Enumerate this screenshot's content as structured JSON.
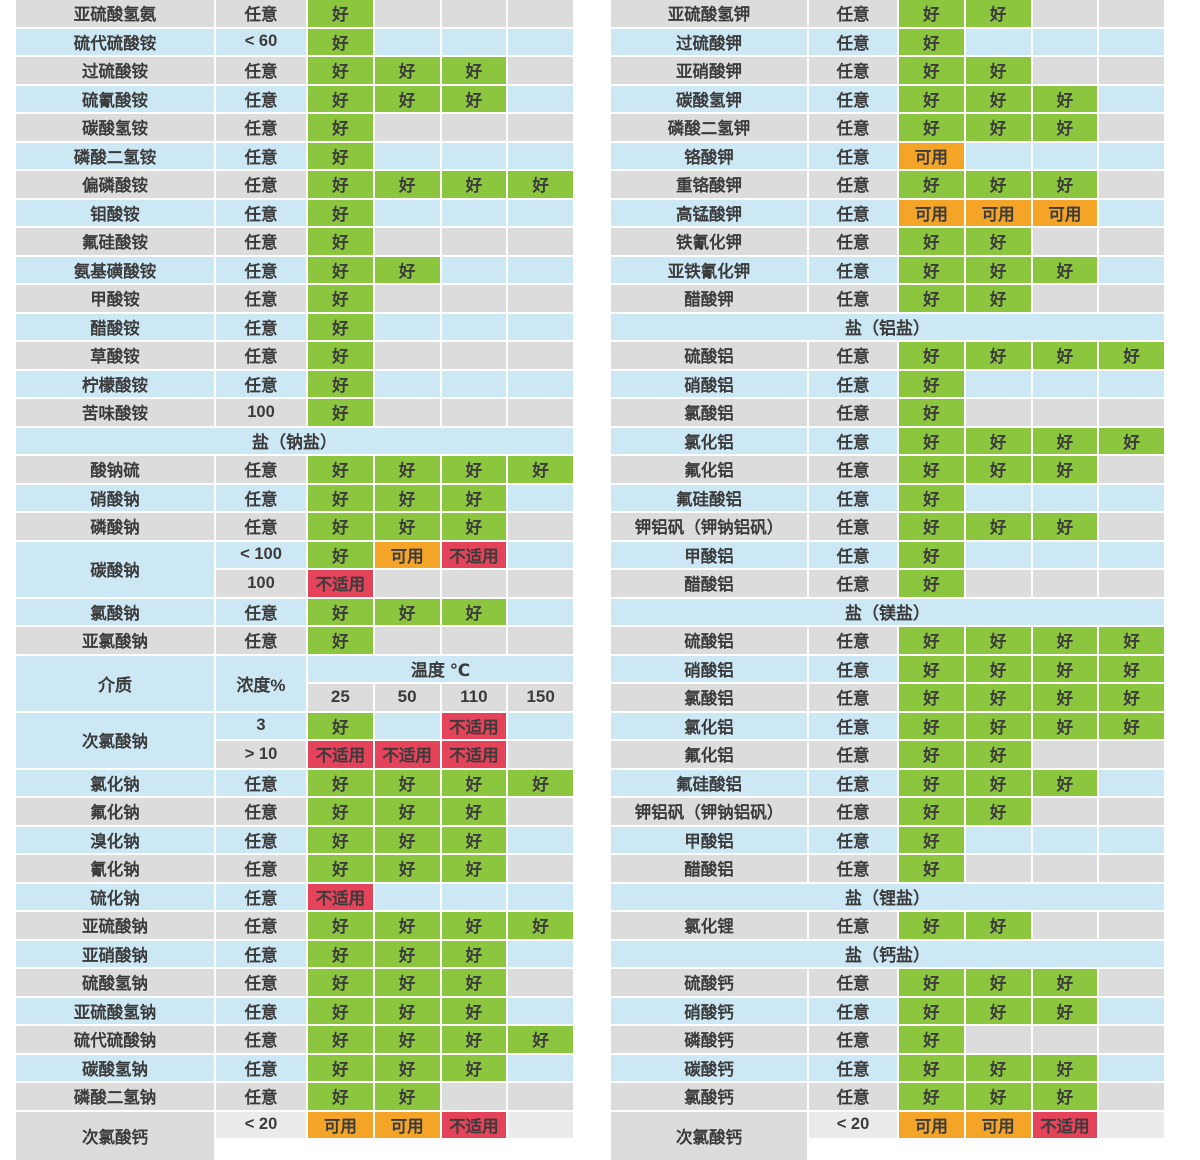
{
  "header": {
    "medium": "介质",
    "concentration": "浓度%",
    "temperature": "温度 ℃",
    "temps": [
      "25",
      "50",
      "110",
      "150"
    ]
  },
  "ratings": {
    "g": {
      "label": "好",
      "color": "#8cc63f"
    },
    "u": {
      "label": "可用",
      "color": "#f4a427"
    },
    "x": {
      "label": "不适用",
      "color": "#e4435a"
    }
  },
  "colors": {
    "row_gray": "#dcdcdc",
    "row_blue": "#cde8f5",
    "good_green": "#8cc63f",
    "usable_orange": "#f4a427",
    "unsuitable_red": "#e4435a",
    "text": "#3b3b3b"
  },
  "left_table": {
    "rows": [
      {
        "t": "r",
        "name": "亚硫酸氢氨",
        "conc": "任意",
        "vals": [
          "g",
          "",
          "",
          ""
        ]
      },
      {
        "t": "r",
        "name": "硫代硫酸铵",
        "conc": "< 60",
        "vals": [
          "g",
          "",
          "",
          ""
        ]
      },
      {
        "t": "r",
        "name": "过硫酸铵",
        "conc": "任意",
        "vals": [
          "g",
          "g",
          "g",
          ""
        ]
      },
      {
        "t": "r",
        "name": "硫氰酸铵",
        "conc": "任意",
        "vals": [
          "g",
          "g",
          "g",
          ""
        ]
      },
      {
        "t": "r",
        "name": "碳酸氢铵",
        "conc": "任意",
        "vals": [
          "g",
          "",
          "",
          ""
        ]
      },
      {
        "t": "r",
        "name": "磷酸二氢铵",
        "conc": "任意",
        "vals": [
          "g",
          "",
          "",
          ""
        ]
      },
      {
        "t": "r",
        "name": "偏磷酸铵",
        "conc": "任意",
        "vals": [
          "g",
          "g",
          "g",
          "g"
        ]
      },
      {
        "t": "r",
        "name": "钼酸铵",
        "conc": "任意",
        "vals": [
          "g",
          "",
          "",
          ""
        ]
      },
      {
        "t": "r",
        "name": "氟硅酸铵",
        "conc": "任意",
        "vals": [
          "g",
          "",
          "",
          ""
        ]
      },
      {
        "t": "r",
        "name": "氨基磺酸铵",
        "conc": "任意",
        "vals": [
          "g",
          "g",
          "",
          ""
        ]
      },
      {
        "t": "r",
        "name": "甲酸铵",
        "conc": "任意",
        "vals": [
          "g",
          "",
          "",
          ""
        ]
      },
      {
        "t": "r",
        "name": "醋酸铵",
        "conc": "任意",
        "vals": [
          "g",
          "",
          "",
          ""
        ]
      },
      {
        "t": "r",
        "name": "草酸铵",
        "conc": "任意",
        "vals": [
          "g",
          "",
          "",
          ""
        ]
      },
      {
        "t": "r",
        "name": "柠檬酸铵",
        "conc": "任意",
        "vals": [
          "g",
          "",
          "",
          ""
        ]
      },
      {
        "t": "r",
        "name": "苦味酸铵",
        "conc": "100",
        "vals": [
          "g",
          "",
          "",
          ""
        ]
      },
      {
        "t": "s",
        "label": "盐（钠盐）"
      },
      {
        "t": "r",
        "name": "酸钠硫",
        "conc": "任意",
        "vals": [
          "g",
          "g",
          "g",
          "g"
        ]
      },
      {
        "t": "r",
        "name": "硝酸钠",
        "conc": "任意",
        "vals": [
          "g",
          "g",
          "g",
          ""
        ]
      },
      {
        "t": "r",
        "name": "磷酸钠",
        "conc": "任意",
        "vals": [
          "g",
          "g",
          "g",
          ""
        ]
      },
      {
        "t": "m",
        "name": "碳酸钠",
        "sub": [
          {
            "conc": "< 100",
            "vals": [
              "g",
              "u",
              "x",
              ""
            ]
          },
          {
            "conc": "100",
            "vals": [
              "x",
              "",
              "",
              ""
            ]
          }
        ]
      },
      {
        "t": "r",
        "name": "氯酸钠",
        "conc": "任意",
        "vals": [
          "g",
          "g",
          "g",
          ""
        ]
      },
      {
        "t": "r",
        "name": "亚氯酸钠",
        "conc": "任意",
        "vals": [
          "g",
          "",
          "",
          ""
        ]
      },
      {
        "t": "h"
      },
      {
        "t": "m",
        "name": "次氯酸钠",
        "sub": [
          {
            "conc": "3",
            "vals": [
              "g",
              "",
              "x",
              ""
            ]
          },
          {
            "conc": "> 10",
            "vals": [
              "x",
              "x",
              "x",
              ""
            ]
          }
        ]
      },
      {
        "t": "r",
        "name": "氯化钠",
        "conc": "任意",
        "vals": [
          "g",
          "g",
          "g",
          "g"
        ]
      },
      {
        "t": "r",
        "name": "氟化钠",
        "conc": "任意",
        "vals": [
          "g",
          "g",
          "g",
          ""
        ]
      },
      {
        "t": "r",
        "name": "溴化钠",
        "conc": "任意",
        "vals": [
          "g",
          "g",
          "g",
          ""
        ]
      },
      {
        "t": "r",
        "name": "氰化钠",
        "conc": "任意",
        "vals": [
          "g",
          "g",
          "g",
          ""
        ]
      },
      {
        "t": "r",
        "name": "硫化钠",
        "conc": "任意",
        "vals": [
          "x",
          "",
          "",
          ""
        ]
      },
      {
        "t": "r",
        "name": "亚硫酸钠",
        "conc": "任意",
        "vals": [
          "g",
          "g",
          "g",
          "g"
        ]
      },
      {
        "t": "r",
        "name": "亚硝酸钠",
        "conc": "任意",
        "vals": [
          "g",
          "g",
          "g",
          ""
        ]
      },
      {
        "t": "r",
        "name": "硫酸氢钠",
        "conc": "任意",
        "vals": [
          "g",
          "g",
          "g",
          ""
        ]
      },
      {
        "t": "r",
        "name": "亚硫酸氢钠",
        "conc": "任意",
        "vals": [
          "g",
          "g",
          "g",
          ""
        ]
      },
      {
        "t": "r",
        "name": "硫代硫酸钠",
        "conc": "任意",
        "vals": [
          "g",
          "g",
          "g",
          "g"
        ]
      },
      {
        "t": "r",
        "name": "碳酸氢钠",
        "conc": "任意",
        "vals": [
          "g",
          "g",
          "g",
          ""
        ]
      },
      {
        "t": "r",
        "name": "磷酸二氢钠",
        "conc": "任意",
        "vals": [
          "g",
          "g",
          "",
          ""
        ]
      },
      {
        "t": "p",
        "name": "次氯酸钙",
        "conc": "< 20",
        "vals": [
          "u",
          "u",
          "x",
          ""
        ]
      }
    ]
  },
  "right_table": {
    "rows": [
      {
        "t": "r",
        "name": "亚硫酸氢钾",
        "conc": "任意",
        "vals": [
          "g",
          "g",
          "",
          ""
        ]
      },
      {
        "t": "r",
        "name": "过硫酸钾",
        "conc": "任意",
        "vals": [
          "g",
          "",
          "",
          ""
        ]
      },
      {
        "t": "r",
        "name": "亚硝酸钾",
        "conc": "任意",
        "vals": [
          "g",
          "g",
          "",
          ""
        ]
      },
      {
        "t": "r",
        "name": "碳酸氢钾",
        "conc": "任意",
        "vals": [
          "g",
          "g",
          "g",
          ""
        ]
      },
      {
        "t": "r",
        "name": "磷酸二氢钾",
        "conc": "任意",
        "vals": [
          "g",
          "g",
          "g",
          ""
        ]
      },
      {
        "t": "r",
        "name": "铬酸钾",
        "conc": "任意",
        "vals": [
          "u",
          "",
          "",
          ""
        ]
      },
      {
        "t": "r",
        "name": "重铬酸钾",
        "conc": "任意",
        "vals": [
          "g",
          "g",
          "g",
          ""
        ]
      },
      {
        "t": "r",
        "name": "高锰酸钾",
        "conc": "任意",
        "vals": [
          "u",
          "u",
          "u",
          ""
        ]
      },
      {
        "t": "r",
        "name": "铁氰化钾",
        "conc": "任意",
        "vals": [
          "g",
          "g",
          "",
          ""
        ]
      },
      {
        "t": "r",
        "name": "亚铁氰化钾",
        "conc": "任意",
        "vals": [
          "g",
          "g",
          "g",
          ""
        ]
      },
      {
        "t": "r",
        "name": "醋酸钾",
        "conc": "任意",
        "vals": [
          "g",
          "g",
          "",
          ""
        ]
      },
      {
        "t": "s",
        "label": "盐（铝盐）"
      },
      {
        "t": "r",
        "name": "硫酸铝",
        "conc": "任意",
        "vals": [
          "g",
          "g",
          "g",
          "g"
        ]
      },
      {
        "t": "r",
        "name": "硝酸铝",
        "conc": "任意",
        "vals": [
          "g",
          "",
          "",
          ""
        ]
      },
      {
        "t": "r",
        "name": "氯酸铝",
        "conc": "任意",
        "vals": [
          "g",
          "",
          "",
          ""
        ]
      },
      {
        "t": "r",
        "name": "氯化铝",
        "conc": "任意",
        "vals": [
          "g",
          "g",
          "g",
          "g"
        ]
      },
      {
        "t": "r",
        "name": "氟化铝",
        "conc": "任意",
        "vals": [
          "g",
          "g",
          "g",
          ""
        ]
      },
      {
        "t": "r",
        "name": "氟硅酸铝",
        "conc": "任意",
        "vals": [
          "g",
          "",
          "",
          ""
        ]
      },
      {
        "t": "r",
        "name": "钾铝矾（钾钠铝矾）",
        "conc": "任意",
        "vals": [
          "g",
          "g",
          "g",
          ""
        ]
      },
      {
        "t": "r",
        "name": "甲酸铝",
        "conc": "任意",
        "vals": [
          "g",
          "",
          "",
          ""
        ]
      },
      {
        "t": "r",
        "name": "醋酸铝",
        "conc": "任意",
        "vals": [
          "g",
          "",
          "",
          ""
        ]
      },
      {
        "t": "s",
        "label": "盐（镁盐）"
      },
      {
        "t": "r",
        "name": "硫酸铝",
        "conc": "任意",
        "vals": [
          "g",
          "g",
          "g",
          "g"
        ]
      },
      {
        "t": "r",
        "name": "硝酸铝",
        "conc": "任意",
        "vals": [
          "g",
          "g",
          "g",
          "g"
        ]
      },
      {
        "t": "r",
        "name": "氯酸铝",
        "conc": "任意",
        "vals": [
          "g",
          "g",
          "g",
          "g"
        ]
      },
      {
        "t": "r",
        "name": "氯化铝",
        "conc": "任意",
        "vals": [
          "g",
          "g",
          "g",
          "g"
        ]
      },
      {
        "t": "r",
        "name": "氟化铝",
        "conc": "任意",
        "vals": [
          "g",
          "g",
          "",
          ""
        ]
      },
      {
        "t": "r",
        "name": "氟硅酸铝",
        "conc": "任意",
        "vals": [
          "g",
          "g",
          "g",
          ""
        ]
      },
      {
        "t": "r",
        "name": "钾铝矾（钾钠铝矾）",
        "conc": "任意",
        "vals": [
          "g",
          "g",
          "",
          ""
        ]
      },
      {
        "t": "r",
        "name": "甲酸铝",
        "conc": "任意",
        "vals": [
          "g",
          "",
          "",
          ""
        ]
      },
      {
        "t": "r",
        "name": "醋酸铝",
        "conc": "任意",
        "vals": [
          "g",
          "",
          "",
          ""
        ]
      },
      {
        "t": "s",
        "label": "盐（锂盐）"
      },
      {
        "t": "r",
        "name": "氯化锂",
        "conc": "任意",
        "vals": [
          "g",
          "g",
          "",
          ""
        ]
      },
      {
        "t": "s",
        "label": "盐（钙盐）"
      },
      {
        "t": "r",
        "name": "硫酸钙",
        "conc": "任意",
        "vals": [
          "g",
          "g",
          "g",
          ""
        ]
      },
      {
        "t": "r",
        "name": "硝酸钙",
        "conc": "任意",
        "vals": [
          "g",
          "g",
          "g",
          ""
        ]
      },
      {
        "t": "r",
        "name": "磷酸钙",
        "conc": "任意",
        "vals": [
          "g",
          "",
          "",
          ""
        ]
      },
      {
        "t": "r",
        "name": "碳酸钙",
        "conc": "任意",
        "vals": [
          "g",
          "g",
          "g",
          ""
        ]
      },
      {
        "t": "r",
        "name": "氯酸钙",
        "conc": "任意",
        "vals": [
          "g",
          "g",
          "g",
          ""
        ]
      },
      {
        "t": "p",
        "name": "次氯酸钙",
        "conc": "< 20",
        "vals": [
          "u",
          "u",
          "x",
          ""
        ]
      }
    ]
  }
}
